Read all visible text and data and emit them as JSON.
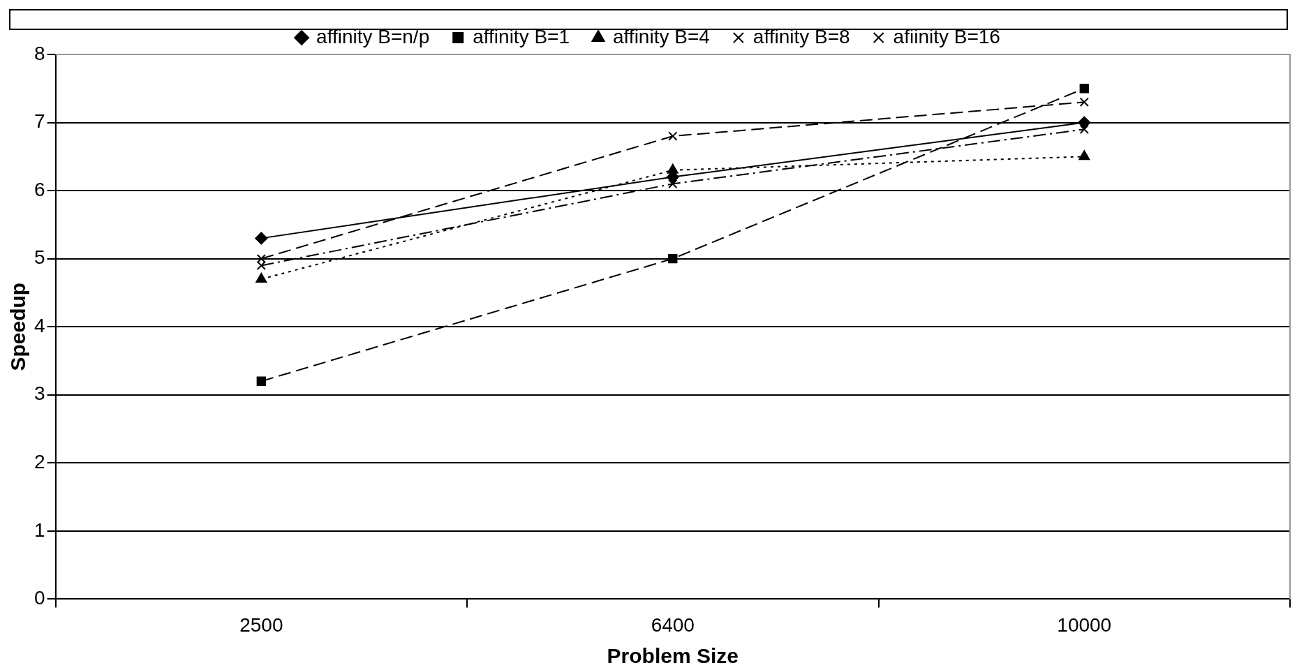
{
  "chart_data": {
    "type": "line",
    "xlabel": "Problem Size",
    "ylabel": "Speedup",
    "categories": [
      "2500",
      "6400",
      "10000"
    ],
    "series": [
      {
        "name": "affinity B=n/p",
        "color": "#000000",
        "marker": "diamond",
        "line_style": "solid",
        "values": [
          5.3,
          6.2,
          7.0
        ]
      },
      {
        "name": "affinity B=1",
        "color": "#000000",
        "marker": "square",
        "line_style": "dashed",
        "values": [
          3.2,
          5.0,
          7.5
        ]
      },
      {
        "name": "affinity B=4",
        "color": "#000000",
        "marker": "triangle",
        "line_style": "dotted",
        "values": [
          4.7,
          6.3,
          6.5
        ]
      },
      {
        "name": "affinity B=8",
        "color": "#000000",
        "marker": "cross",
        "line_style": "dashed",
        "values": [
          5.0,
          6.8,
          7.3
        ]
      },
      {
        "name": "afiinity B=16",
        "color": "#000000",
        "marker": "cross",
        "line_style": "dashdot",
        "values": [
          4.9,
          6.1,
          6.9
        ]
      }
    ],
    "ylim": [
      0,
      8
    ],
    "yticks": [
      0,
      1,
      2,
      3,
      4,
      5,
      6,
      7,
      8
    ],
    "grid": "y",
    "legend": "top"
  }
}
